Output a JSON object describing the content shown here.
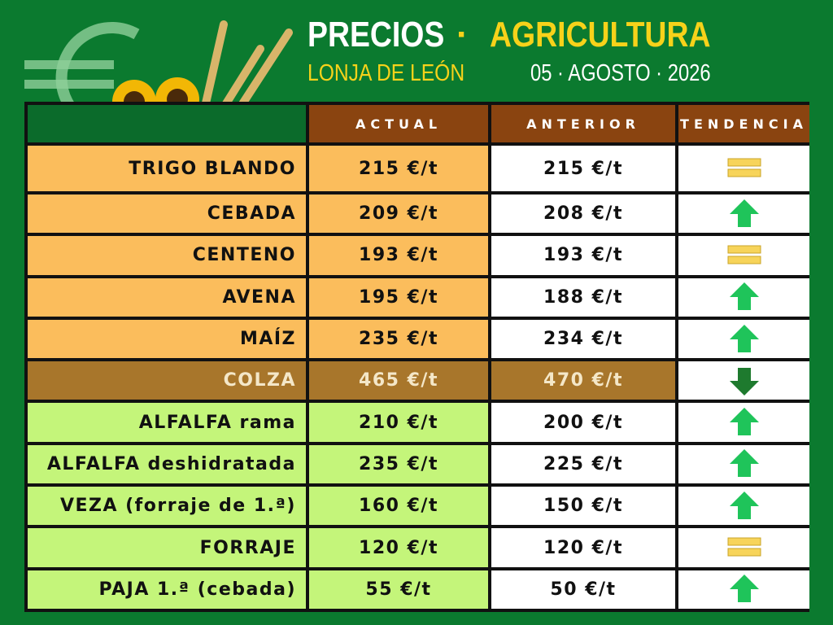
{
  "header": {
    "title": "PRECIOS",
    "separator": "·",
    "topic": "AGRICULTURA",
    "subtitle": "LONJA DE LEÓN",
    "date": "05 · AGOSTO · 2026"
  },
  "table": {
    "columns": [
      "ACTUAL",
      "ANTERIOR",
      "TENDENCIA"
    ],
    "rows": [
      [
        "TRIGO BLANDO",
        "215 €/t",
        "215 €/t",
        "equal"
      ],
      [
        "CEBADA",
        "209 €/t",
        "208 €/t",
        "up"
      ],
      [
        "CENTENO",
        "193 €/t",
        "193 €/t",
        "equal"
      ],
      [
        "AVENA",
        "195 €/t",
        "188 €/t",
        "up"
      ],
      [
        "MAÍZ",
        "235 €/t",
        "234 €/t",
        "up"
      ],
      [
        "COLZA",
        "465 €/t",
        "470 €/t",
        "down"
      ],
      [
        "ALFALFA rama",
        "210 €/t",
        "200 €/t",
        "up"
      ],
      [
        "ALFALFA deshidratada",
        "235 €/t",
        "225 €/t",
        "up"
      ],
      [
        "VEZA (forraje de 1.ª)",
        "160 €/t",
        "150 €/t",
        "up"
      ],
      [
        "FORRAJE",
        "120 €/t",
        "120 €/t",
        "equal"
      ],
      [
        "PAJA 1.ª (cebada)",
        "55 €/t",
        "50 €/t",
        "up"
      ]
    ]
  }
}
